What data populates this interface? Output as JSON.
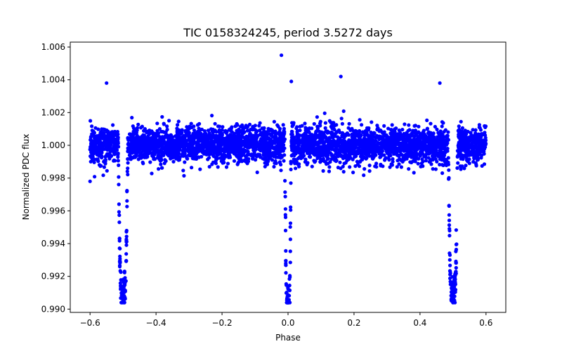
{
  "chart_data": {
    "type": "scatter",
    "title": "TIC 0158324245, period 3.5272 days",
    "xlabel": "Phase",
    "ylabel": "Normalized PDC flux",
    "xlim": [
      -0.66,
      0.66
    ],
    "ylim": [
      0.9898,
      1.0063
    ],
    "xticks": [
      -0.6,
      -0.4,
      -0.2,
      0.0,
      0.2,
      0.4,
      0.6
    ],
    "xtick_labels": [
      "−0.6",
      "−0.4",
      "−0.2",
      "0.0",
      "0.2",
      "0.4",
      "0.6"
    ],
    "yticks": [
      0.99,
      0.992,
      0.994,
      0.996,
      0.998,
      1.0,
      1.002,
      1.004,
      1.006
    ],
    "ytick_labels": [
      "0.990",
      "0.992",
      "0.994",
      "0.996",
      "0.998",
      "1.000",
      "1.002",
      "1.004",
      "1.006"
    ],
    "grid": false,
    "marker_color": "#0000ff",
    "series": [
      {
        "x_range": [
          -0.6,
          0.6
        ],
        "baseline_flux": 1.0,
        "scatter_band": [
          0.9985,
          1.0025
        ],
        "primary_eclipses": [
          {
            "phase": -0.5,
            "min_flux": 0.991
          },
          {
            "phase": 0.5,
            "min_flux": 0.991
          }
        ],
        "secondary_eclipse": {
          "phase": 0.0,
          "min_flux": 0.9905
        },
        "outliers": [
          {
            "x": -0.02,
            "y": 1.0055
          },
          {
            "x": 0.16,
            "y": 1.0042
          },
          {
            "x": -0.55,
            "y": 1.0038
          },
          {
            "x": 0.46,
            "y": 1.0038
          },
          {
            "x": -0.6,
            "y": 0.9978
          },
          {
            "x": 0.01,
            "y": 1.0039
          }
        ]
      }
    ]
  }
}
